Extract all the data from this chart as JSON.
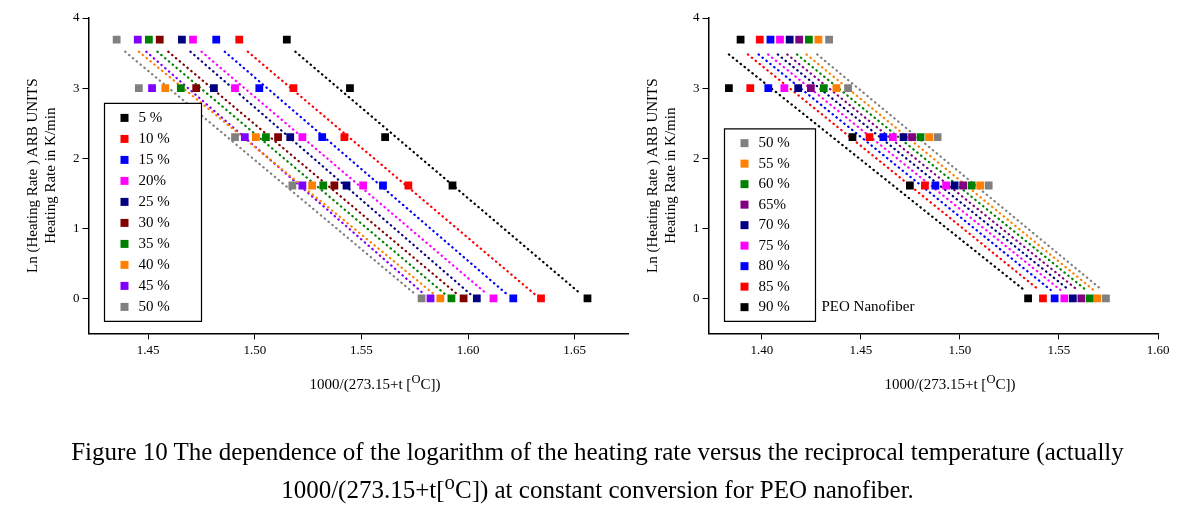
{
  "chart_data": [
    {
      "type": "scatter",
      "xlabel": "1000/(273.15+t [$^{O}$C])",
      "ylabel": "Ln (Heating Rate ) ARB UNITS\nHeating Rate in K/min",
      "xlim": [
        1.422,
        1.675
      ],
      "ylim": [
        -0.5,
        4
      ],
      "xticks": [
        1.45,
        {
          "value": 1.5,
          "label": "1.50"
        },
        1.55,
        {
          "value": 1.6,
          "label": "1.60"
        },
        1.65
      ],
      "yticks": [
        0,
        1,
        2,
        3,
        4
      ],
      "grid": false,
      "legend": "bottom left",
      "annotations": [
        "Figure 10 The dependence of the logarithm of the heating rate versus the reciprocal temperature (actually 1000/(273.15+t[$^{o}$C]) at constant conversion for PEO nanofiber."
      ],
      "series": [
        {
          "name": "5 %",
          "color": "#000000",
          "marker": "square",
          "x": [
            1.515,
            1.5446,
            1.5611,
            1.5927,
            1.656
          ],
          "values": [
            3.69,
            3.0,
            2.3,
            1.61,
            0
          ]
        },
        {
          "name": "10 %",
          "color": "#ff0000",
          "marker": "square",
          "x": [
            1.4927,
            1.5181,
            1.542,
            1.572,
            1.6342
          ],
          "values": [
            3.69,
            3.0,
            2.3,
            1.61,
            0
          ]
        },
        {
          "name": "15 %",
          "color": "#0000ff",
          "marker": "square",
          "x": [
            1.4819,
            1.5021,
            1.5316,
            1.5601,
            1.6212
          ],
          "values": [
            3.69,
            3.0,
            2.3,
            1.61,
            0
          ]
        },
        {
          "name": "20%",
          "color": "#ff00ff",
          "marker": "square",
          "x": [
            1.471,
            1.4907,
            1.5223,
            1.5508,
            1.6119
          ],
          "values": [
            3.69,
            3.0,
            2.3,
            1.61,
            0
          ]
        },
        {
          "name": "25 %",
          "color": "#000080",
          "marker": "square",
          "x": [
            1.4658,
            1.4808,
            1.5166,
            1.543,
            1.6041
          ],
          "values": [
            3.69,
            3.0,
            2.3,
            1.61,
            0
          ]
        },
        {
          "name": "30 %",
          "color": "#800000",
          "marker": "square",
          "x": [
            1.4554,
            1.4725,
            1.5109,
            1.5373,
            1.5979
          ],
          "values": [
            3.69,
            3.0,
            2.3,
            1.61,
            0
          ]
        },
        {
          "name": "35 %",
          "color": "#008000",
          "marker": "square",
          "x": [
            1.4503,
            1.4653,
            1.5052,
            1.5321,
            1.5922
          ],
          "values": [
            3.69,
            3.0,
            2.3,
            1.61,
            0
          ]
        },
        {
          "name": "40 %",
          "color": "#ff8000",
          "marker": "square",
          "x": [
            1.458,
            1.5005,
            1.5269,
            1.587
          ],
          "values": [
            3.0,
            2.3,
            1.61,
            0
          ]
        },
        {
          "name": "45 %",
          "color": "#8000ff",
          "marker": "square",
          "x": [
            1.4451,
            1.4518,
            1.4953,
            1.5223,
            1.5824
          ],
          "values": [
            3.69,
            3.0,
            2.3,
            1.61,
            0
          ]
        },
        {
          "name": "50 %",
          "color": "#808080",
          "marker": "square",
          "x": [
            1.4352,
            1.4456,
            1.4907,
            1.5176,
            1.5782
          ],
          "values": [
            3.69,
            3.0,
            2.3,
            1.61,
            0
          ]
        },
        {
          "color": "#000000",
          "type": "line",
          "line_style": "dotted",
          "x": [
            1.519,
            1.653
          ],
          "values": [
            3.52,
            0.06
          ]
        },
        {
          "color": "#ff0000",
          "type": "line",
          "line_style": "dotted",
          "x": [
            1.4967,
            1.6312
          ],
          "values": [
            3.52,
            0.06
          ]
        },
        {
          "color": "#0000ff",
          "type": "line",
          "line_style": "dotted",
          "x": [
            1.4859,
            1.6182
          ],
          "values": [
            3.52,
            0.06
          ]
        },
        {
          "color": "#ff00ff",
          "type": "line",
          "line_style": "dotted",
          "x": [
            1.475,
            1.6089
          ],
          "values": [
            3.52,
            0.06
          ]
        },
        {
          "color": "#000080",
          "type": "line",
          "line_style": "dotted",
          "x": [
            1.4698,
            1.6011
          ],
          "values": [
            3.52,
            0.06
          ]
        },
        {
          "color": "#800000",
          "type": "line",
          "line_style": "dotted",
          "x": [
            1.4594,
            1.5949
          ],
          "values": [
            3.52,
            0.06
          ]
        },
        {
          "color": "#008000",
          "type": "line",
          "line_style": "dotted",
          "x": [
            1.4543,
            1.5892
          ],
          "values": [
            3.52,
            0.06
          ]
        },
        {
          "color": "#ff8000",
          "type": "line",
          "line_style": "dotted",
          "x": [
            1.4456,
            1.584
          ],
          "values": [
            3.52,
            0.06
          ]
        },
        {
          "color": "#8000ff",
          "type": "line",
          "line_style": "dotted",
          "x": [
            1.4491,
            1.5794
          ],
          "values": [
            3.52,
            0.06
          ]
        },
        {
          "color": "#808080",
          "type": "line",
          "line_style": "dotted",
          "x": [
            1.4392,
            1.5752
          ],
          "values": [
            3.52,
            0.06
          ]
        }
      ]
    },
    {
      "type": "scatter",
      "xlabel": "1000/(273.15+t [$^{O}$C])",
      "ylabel": "Ln (Heating Rate ) ARB UNITS\nHeating Rate in K/min",
      "xlim": [
        1.373,
        1.6
      ],
      "ylim": [
        -0.5,
        4
      ],
      "xticks": [
        {
          "value": 1.4,
          "label": "1.40"
        },
        1.45,
        {
          "value": 1.5,
          "label": "1.50"
        },
        1.55,
        {
          "value": 1.6,
          "label": "1.60"
        }
      ],
      "yticks": [
        0,
        1,
        2,
        3,
        4
      ],
      "grid": false,
      "legend": "bottom left",
      "annotations": [
        "PEO Nanofiber"
      ],
      "series": [
        {
          "name": "50 %",
          "color": "#808080",
          "marker": "square",
          "x": [
            1.4339,
            1.4435,
            1.4887,
            1.5145,
            1.5737
          ],
          "values": [
            3.69,
            3.0,
            2.3,
            1.61,
            0
          ]
        },
        {
          "name": "55 %",
          "color": "#ff8000",
          "marker": "square",
          "x": [
            1.4285,
            1.4376,
            1.4844,
            1.5102,
            1.5694
          ],
          "values": [
            3.69,
            3.0,
            2.3,
            1.61,
            0
          ]
        },
        {
          "name": "60 %",
          "color": "#008000",
          "marker": "square",
          "x": [
            1.4237,
            1.4312,
            1.4801,
            1.5059,
            1.5656
          ],
          "values": [
            3.69,
            3.0,
            2.3,
            1.61,
            0
          ]
        },
        {
          "name": "65%",
          "color": "#800080",
          "marker": "square",
          "x": [
            1.4188,
            1.4247,
            1.4758,
            1.5016,
            1.5613
          ],
          "values": [
            3.69,
            3.0,
            2.3,
            1.61,
            0
          ]
        },
        {
          "name": "70 %",
          "color": "#000080",
          "marker": "square",
          "x": [
            1.414,
            1.4183,
            1.4715,
            1.4973,
            1.557
          ],
          "values": [
            3.69,
            3.0,
            2.3,
            1.61,
            0
          ]
        },
        {
          "name": "75 %",
          "color": "#ff00ff",
          "marker": "square",
          "x": [
            1.4091,
            1.4113,
            1.4661,
            1.493,
            1.5527
          ],
          "values": [
            3.69,
            3.0,
            2.3,
            1.61,
            0
          ]
        },
        {
          "name": "80 %",
          "color": "#0000ff",
          "marker": "square",
          "x": [
            1.4043,
            1.4032,
            1.4613,
            1.4876,
            1.5478
          ],
          "values": [
            3.69,
            3.0,
            2.3,
            1.61,
            0
          ]
        },
        {
          "name": "85 %",
          "color": "#ff0000",
          "marker": "square",
          "x": [
            1.3989,
            1.3941,
            1.4543,
            1.4823,
            1.5419
          ],
          "values": [
            3.69,
            3.0,
            2.3,
            1.61,
            0
          ]
        },
        {
          "name": "90 %",
          "color": "#000000",
          "marker": "square",
          "x": [
            1.3892,
            1.3833,
            1.4457,
            1.4747,
            1.5344
          ],
          "values": [
            3.69,
            3.0,
            2.3,
            1.61,
            0
          ]
        },
        {
          "color": "#808080",
          "type": "line",
          "line_style": "dotted",
          "x": [
            1.4279,
            1.5717
          ],
          "values": [
            3.48,
            0.12
          ]
        },
        {
          "color": "#ff8000",
          "type": "line",
          "line_style": "dotted",
          "x": [
            1.4225,
            1.5674
          ],
          "values": [
            3.48,
            0.12
          ]
        },
        {
          "color": "#008000",
          "type": "line",
          "line_style": "dotted",
          "x": [
            1.4177,
            1.5636
          ],
          "values": [
            3.48,
            0.12
          ]
        },
        {
          "color": "#800080",
          "type": "line",
          "line_style": "dotted",
          "x": [
            1.4128,
            1.5593
          ],
          "values": [
            3.48,
            0.12
          ]
        },
        {
          "color": "#000080",
          "type": "line",
          "line_style": "dotted",
          "x": [
            1.408,
            1.555
          ],
          "values": [
            3.48,
            0.12
          ]
        },
        {
          "color": "#ff00ff",
          "type": "line",
          "line_style": "dotted",
          "x": [
            1.4031,
            1.5507
          ],
          "values": [
            3.48,
            0.12
          ]
        },
        {
          "color": "#0000ff",
          "type": "line",
          "line_style": "dotted",
          "x": [
            1.3983,
            1.5458
          ],
          "values": [
            3.48,
            0.12
          ]
        },
        {
          "color": "#ff0000",
          "type": "line",
          "line_style": "dotted",
          "x": [
            1.3929,
            1.5399
          ],
          "values": [
            3.48,
            0.12
          ]
        },
        {
          "color": "#000000",
          "type": "line",
          "line_style": "dotted",
          "x": [
            1.3833,
            1.5324
          ],
          "values": [
            3.48,
            0.12
          ]
        }
      ]
    }
  ]
}
